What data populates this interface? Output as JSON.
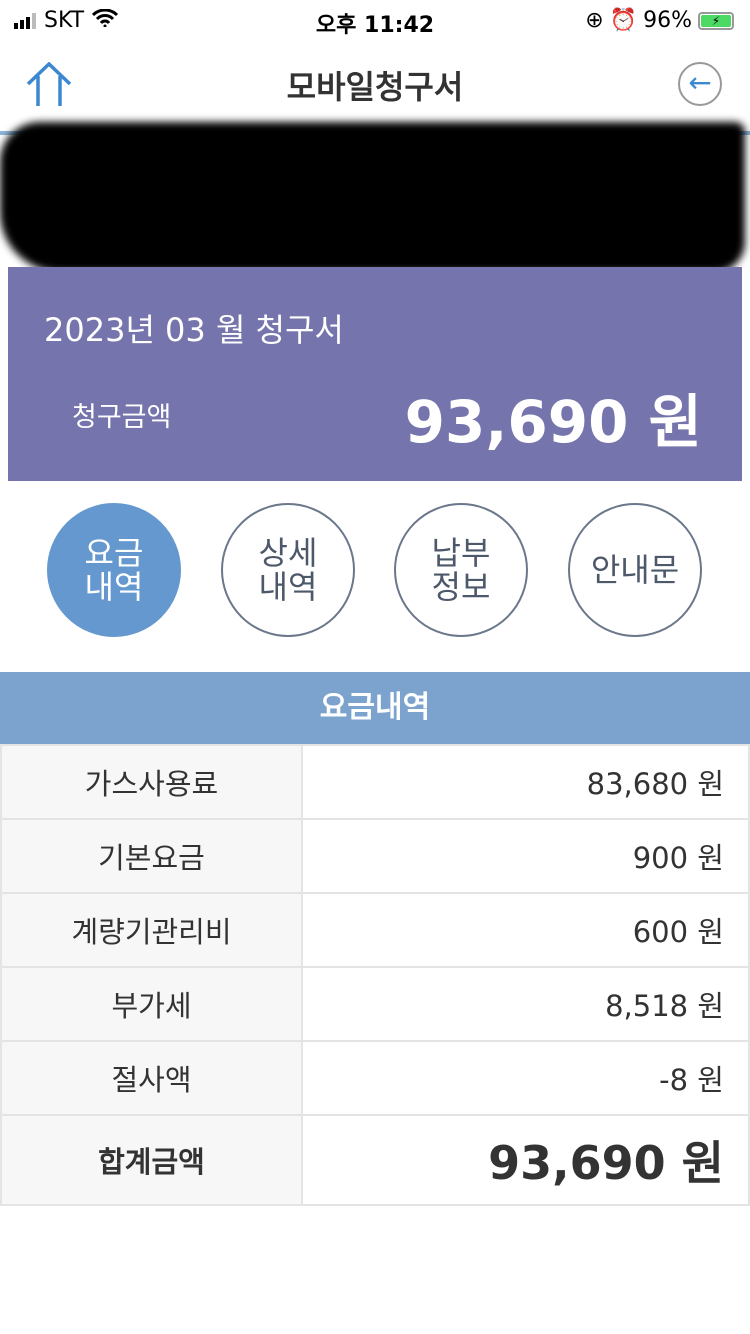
{
  "status": {
    "carrier": "SKT",
    "time": "오후 11:42",
    "battery": "96%"
  },
  "nav": {
    "title": "모바일청구서"
  },
  "bill": {
    "month": "2023년 03 월 청구서",
    "amount_label": "청구금액",
    "amount": "93,690 원"
  },
  "tabs": [
    {
      "label": "요금\n내역",
      "active": true
    },
    {
      "label": "상세\n내역"
    },
    {
      "label": "납부\n정보"
    },
    {
      "label": "안내문"
    }
  ],
  "section": {
    "title": "요금내역"
  },
  "rows": [
    {
      "label": "가스사용료",
      "value": "83,680 원"
    },
    {
      "label": "기본요금",
      "value": "900 원"
    },
    {
      "label": "계량기관리비",
      "value": "600 원"
    },
    {
      "label": "부가세",
      "value": "8,518 원"
    },
    {
      "label": "절사액",
      "value": "-8 원"
    },
    {
      "label": "합계금액",
      "value": "93,690 원"
    }
  ],
  "colors": {
    "bill_bg": "#7674ac",
    "active_tab": "#6598cf",
    "section_bg": "#7ba3cd"
  }
}
